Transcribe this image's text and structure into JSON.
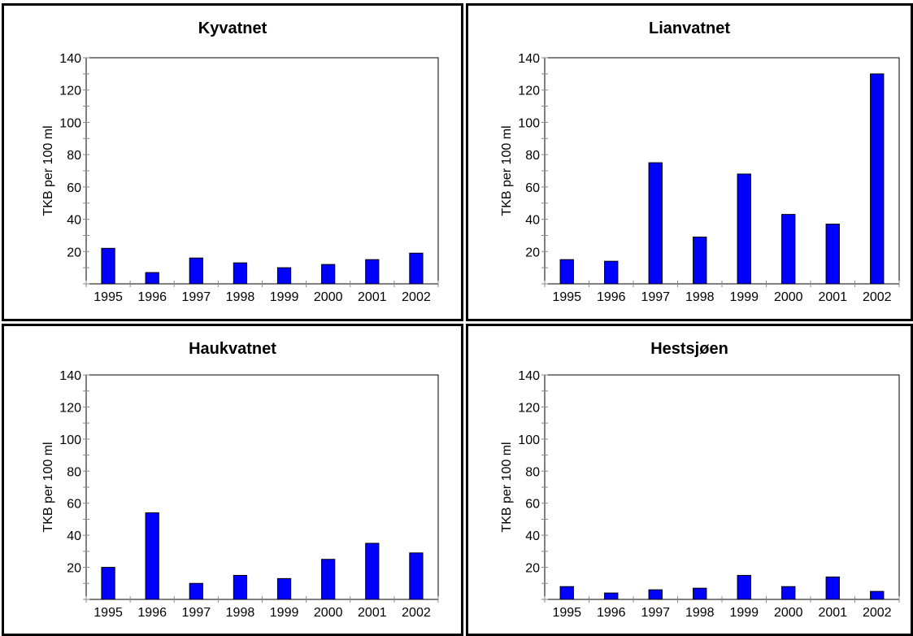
{
  "chart_data": [
    {
      "type": "bar",
      "title": "Kyvatnet",
      "ylabel": "TKB per 100 ml",
      "xlabel": "",
      "ylim": [
        0,
        140
      ],
      "yticks": [
        20,
        40,
        60,
        80,
        100,
        120,
        140
      ],
      "categories": [
        "1995",
        "1996",
        "1997",
        "1998",
        "1999",
        "2000",
        "2001",
        "2002"
      ],
      "values": [
        22,
        7,
        16,
        13,
        10,
        12,
        15,
        19
      ],
      "bar_color": "#0000ff",
      "grid": false
    },
    {
      "type": "bar",
      "title": "Lianvatnet",
      "ylabel": "TKB per 100 ml",
      "xlabel": "",
      "ylim": [
        0,
        140
      ],
      "yticks": [
        20,
        40,
        60,
        80,
        100,
        120,
        140
      ],
      "categories": [
        "1995",
        "1996",
        "1997",
        "1998",
        "1999",
        "2000",
        "2001",
        "2002"
      ],
      "values": [
        15,
        14,
        75,
        29,
        68,
        43,
        37,
        130
      ],
      "bar_color": "#0000ff",
      "grid": false
    },
    {
      "type": "bar",
      "title": "Haukvatnet",
      "ylabel": "TKB per 100 ml",
      "xlabel": "",
      "ylim": [
        0,
        140
      ],
      "yticks": [
        20,
        40,
        60,
        80,
        100,
        120,
        140
      ],
      "categories": [
        "1995",
        "1996",
        "1997",
        "1998",
        "1999",
        "2000",
        "2001",
        "2002"
      ],
      "values": [
        20,
        54,
        10,
        15,
        13,
        25,
        35,
        29
      ],
      "bar_color": "#0000ff",
      "grid": false
    },
    {
      "type": "bar",
      "title": "Hestsjøen",
      "ylabel": "TKB per 100 ml",
      "xlabel": "",
      "ylim": [
        0,
        140
      ],
      "yticks": [
        20,
        40,
        60,
        80,
        100,
        120,
        140
      ],
      "categories": [
        "1995",
        "1996",
        "1997",
        "1998",
        "1999",
        "2000",
        "2001",
        "2002"
      ],
      "values": [
        8,
        4,
        6,
        7,
        15,
        8,
        14,
        5
      ],
      "bar_color": "#0000ff",
      "grid": false
    }
  ]
}
